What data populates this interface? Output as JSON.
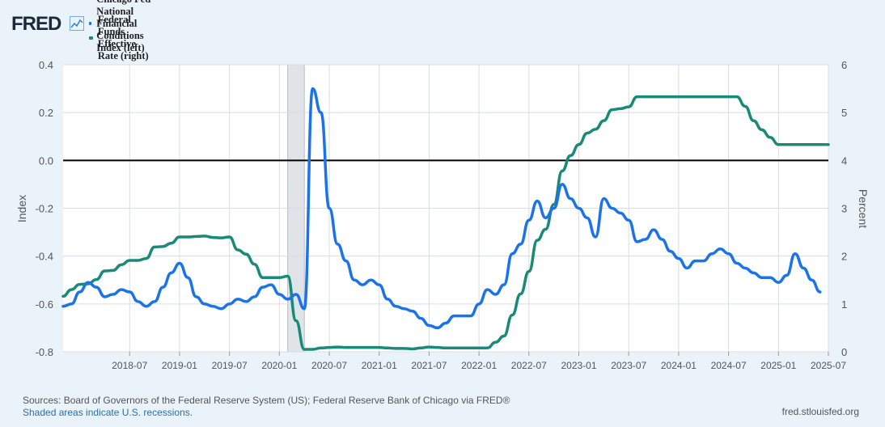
{
  "header": {
    "logo_text": "FRED",
    "logo_icon": "chart-line-icon"
  },
  "chart_data": {
    "type": "line",
    "title": "",
    "xlabel": "",
    "ylabel_left": "Index",
    "ylabel_right": "Percent",
    "ylim_left": [
      -0.8,
      0.4
    ],
    "ylim_right": [
      0,
      6
    ],
    "yticks_left": [
      "0.4",
      "0.2",
      "0.0",
      "-0.2",
      "-0.4",
      "-0.6",
      "-0.8"
    ],
    "yticks_right": [
      "6",
      "5",
      "4",
      "3",
      "2",
      "1",
      "0"
    ],
    "xlim": [
      "2017-11",
      "2025-07"
    ],
    "xticks": [
      "2018-07",
      "2019-01",
      "2019-07",
      "2020-01",
      "2020-07",
      "2021-01",
      "2021-07",
      "2022-01",
      "2022-07",
      "2023-01",
      "2023-07",
      "2024-01",
      "2024-07",
      "2025-01",
      "2025-07"
    ],
    "zero_line": 0,
    "grid": true,
    "recessions": [
      {
        "start": "2020-02",
        "end": "2020-04"
      }
    ],
    "series": [
      {
        "name": "Chicago Fed National Financial Conditions Index (left)",
        "axis": "left",
        "color": "#1a73e8",
        "points": [
          [
            "2017-11",
            -0.61
          ],
          [
            "2017-12",
            -0.6
          ],
          [
            "2018-01",
            -0.55
          ],
          [
            "2018-02",
            -0.51
          ],
          [
            "2018-03",
            -0.53
          ],
          [
            "2018-04",
            -0.57
          ],
          [
            "2018-05",
            -0.56
          ],
          [
            "2018-06",
            -0.54
          ],
          [
            "2018-07",
            -0.55
          ],
          [
            "2018-08",
            -0.59
          ],
          [
            "2018-09",
            -0.61
          ],
          [
            "2018-10",
            -0.59
          ],
          [
            "2018-11",
            -0.53
          ],
          [
            "2018-12",
            -0.47
          ],
          [
            "2019-01",
            -0.43
          ],
          [
            "2019-02",
            -0.49
          ],
          [
            "2019-03",
            -0.57
          ],
          [
            "2019-04",
            -0.6
          ],
          [
            "2019-05",
            -0.61
          ],
          [
            "2019-06",
            -0.62
          ],
          [
            "2019-07",
            -0.6
          ],
          [
            "2019-08",
            -0.58
          ],
          [
            "2019-09",
            -0.59
          ],
          [
            "2019-10",
            -0.57
          ],
          [
            "2019-11",
            -0.53
          ],
          [
            "2019-12",
            -0.52
          ],
          [
            "2020-01",
            -0.56
          ],
          [
            "2020-02",
            -0.58
          ],
          [
            "2020-03",
            -0.56
          ],
          [
            "2020-04",
            -0.62
          ],
          [
            "2020-05",
            0.3
          ],
          [
            "2020-06",
            0.2
          ],
          [
            "2020-07",
            -0.2
          ],
          [
            "2020-08",
            -0.35
          ],
          [
            "2020-09",
            -0.42
          ],
          [
            "2020-10",
            -0.5
          ],
          [
            "2020-11",
            -0.52
          ],
          [
            "2020-12",
            -0.5
          ],
          [
            "2021-01",
            -0.52
          ],
          [
            "2021-02",
            -0.58
          ],
          [
            "2021-03",
            -0.61
          ],
          [
            "2021-04",
            -0.62
          ],
          [
            "2021-05",
            -0.63
          ],
          [
            "2021-06",
            -0.66
          ],
          [
            "2021-07",
            -0.69
          ],
          [
            "2021-08",
            -0.7
          ],
          [
            "2021-09",
            -0.68
          ],
          [
            "2021-10",
            -0.65
          ],
          [
            "2021-11",
            -0.65
          ],
          [
            "2021-12",
            -0.65
          ],
          [
            "2022-01",
            -0.6
          ],
          [
            "2022-02",
            -0.54
          ],
          [
            "2022-03",
            -0.56
          ],
          [
            "2022-04",
            -0.52
          ],
          [
            "2022-05",
            -0.39
          ],
          [
            "2022-06",
            -0.35
          ],
          [
            "2022-07",
            -0.25
          ],
          [
            "2022-08",
            -0.17
          ],
          [
            "2022-09",
            -0.24
          ],
          [
            "2022-10",
            -0.2
          ],
          [
            "2022-11",
            -0.1
          ],
          [
            "2022-12",
            -0.16
          ],
          [
            "2023-01",
            -0.2
          ],
          [
            "2023-02",
            -0.24
          ],
          [
            "2023-03",
            -0.32
          ],
          [
            "2023-04",
            -0.16
          ],
          [
            "2023-05",
            -0.2
          ],
          [
            "2023-06",
            -0.22
          ],
          [
            "2023-07",
            -0.25
          ],
          [
            "2023-08",
            -0.34
          ],
          [
            "2023-09",
            -0.33
          ],
          [
            "2023-10",
            -0.29
          ],
          [
            "2023-11",
            -0.33
          ],
          [
            "2023-12",
            -0.38
          ],
          [
            "2024-01",
            -0.41
          ],
          [
            "2024-02",
            -0.45
          ],
          [
            "2024-03",
            -0.42
          ],
          [
            "2024-04",
            -0.42
          ],
          [
            "2024-05",
            -0.39
          ],
          [
            "2024-06",
            -0.37
          ],
          [
            "2024-07",
            -0.39
          ],
          [
            "2024-08",
            -0.43
          ],
          [
            "2024-09",
            -0.45
          ],
          [
            "2024-10",
            -0.47
          ],
          [
            "2024-11",
            -0.49
          ],
          [
            "2024-12",
            -0.49
          ],
          [
            "2025-01",
            -0.51
          ],
          [
            "2025-02",
            -0.48
          ],
          [
            "2025-03",
            -0.39
          ],
          [
            "2025-04",
            -0.45
          ],
          [
            "2025-05",
            -0.5
          ],
          [
            "2025-06",
            -0.55
          ]
        ]
      },
      {
        "name": "Federal Funds Effective Rate (right)",
        "axis": "right",
        "color": "#1a8a78",
        "points": [
          [
            "2017-11",
            1.16
          ],
          [
            "2017-12",
            1.3
          ],
          [
            "2018-01",
            1.41
          ],
          [
            "2018-02",
            1.42
          ],
          [
            "2018-03",
            1.51
          ],
          [
            "2018-04",
            1.69
          ],
          [
            "2018-05",
            1.7
          ],
          [
            "2018-06",
            1.82
          ],
          [
            "2018-07",
            1.91
          ],
          [
            "2018-08",
            1.91
          ],
          [
            "2018-09",
            1.95
          ],
          [
            "2018-10",
            2.19
          ],
          [
            "2018-11",
            2.2
          ],
          [
            "2018-12",
            2.27
          ],
          [
            "2019-01",
            2.4
          ],
          [
            "2019-02",
            2.4
          ],
          [
            "2019-03",
            2.41
          ],
          [
            "2019-04",
            2.42
          ],
          [
            "2019-05",
            2.39
          ],
          [
            "2019-06",
            2.38
          ],
          [
            "2019-07",
            2.4
          ],
          [
            "2019-08",
            2.13
          ],
          [
            "2019-09",
            2.04
          ],
          [
            "2019-10",
            1.83
          ],
          [
            "2019-11",
            1.55
          ],
          [
            "2019-12",
            1.55
          ],
          [
            "2020-01",
            1.55
          ],
          [
            "2020-02",
            1.58
          ],
          [
            "2020-03",
            0.65
          ],
          [
            "2020-04",
            0.05
          ],
          [
            "2020-05",
            0.05
          ],
          [
            "2020-06",
            0.08
          ],
          [
            "2020-07",
            0.09
          ],
          [
            "2020-08",
            0.1
          ],
          [
            "2020-09",
            0.09
          ],
          [
            "2020-10",
            0.09
          ],
          [
            "2020-11",
            0.09
          ],
          [
            "2020-12",
            0.09
          ],
          [
            "2021-01",
            0.09
          ],
          [
            "2021-02",
            0.08
          ],
          [
            "2021-03",
            0.07
          ],
          [
            "2021-04",
            0.07
          ],
          [
            "2021-05",
            0.06
          ],
          [
            "2021-06",
            0.08
          ],
          [
            "2021-07",
            0.1
          ],
          [
            "2021-08",
            0.09
          ],
          [
            "2021-09",
            0.08
          ],
          [
            "2021-10",
            0.08
          ],
          [
            "2021-11",
            0.08
          ],
          [
            "2021-12",
            0.08
          ],
          [
            "2022-01",
            0.08
          ],
          [
            "2022-02",
            0.08
          ],
          [
            "2022-03",
            0.2
          ],
          [
            "2022-04",
            0.33
          ],
          [
            "2022-05",
            0.77
          ],
          [
            "2022-06",
            1.21
          ],
          [
            "2022-07",
            1.68
          ],
          [
            "2022-08",
            2.33
          ],
          [
            "2022-09",
            2.56
          ],
          [
            "2022-10",
            3.08
          ],
          [
            "2022-11",
            3.78
          ],
          [
            "2022-12",
            4.1
          ],
          [
            "2023-01",
            4.33
          ],
          [
            "2023-02",
            4.57
          ],
          [
            "2023-03",
            4.65
          ],
          [
            "2023-04",
            4.83
          ],
          [
            "2023-05",
            5.06
          ],
          [
            "2023-06",
            5.08
          ],
          [
            "2023-07",
            5.12
          ],
          [
            "2023-08",
            5.33
          ],
          [
            "2023-09",
            5.33
          ],
          [
            "2023-10",
            5.33
          ],
          [
            "2023-11",
            5.33
          ],
          [
            "2023-12",
            5.33
          ],
          [
            "2024-01",
            5.33
          ],
          [
            "2024-02",
            5.33
          ],
          [
            "2024-03",
            5.33
          ],
          [
            "2024-04",
            5.33
          ],
          [
            "2024-05",
            5.33
          ],
          [
            "2024-06",
            5.33
          ],
          [
            "2024-07",
            5.33
          ],
          [
            "2024-08",
            5.33
          ],
          [
            "2024-09",
            5.13
          ],
          [
            "2024-10",
            4.83
          ],
          [
            "2024-11",
            4.64
          ],
          [
            "2024-12",
            4.48
          ],
          [
            "2025-01",
            4.33
          ],
          [
            "2025-02",
            4.33
          ],
          [
            "2025-03",
            4.33
          ],
          [
            "2025-04",
            4.33
          ],
          [
            "2025-05",
            4.33
          ],
          [
            "2025-06",
            4.33
          ],
          [
            "2025-07",
            4.33
          ]
        ]
      }
    ]
  },
  "footer": {
    "sources": "Sources: Board of Governors of the Federal Reserve System (US); Federal Reserve Bank of Chicago via FRED®",
    "recession_note": "Shaded areas indicate U.S. recessions.",
    "site": "fred.stlouisfed.org"
  }
}
